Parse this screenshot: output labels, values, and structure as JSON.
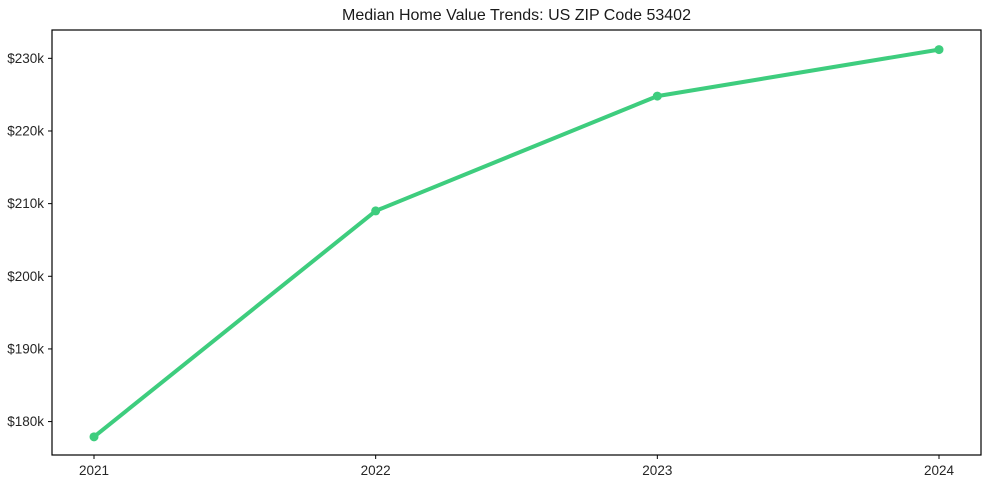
{
  "chart_data": {
    "type": "line",
    "title": "Median Home Value Trends: US ZIP Code 53402",
    "series": [
      {
        "name": "Median Home Value",
        "values": [
          177900,
          209000,
          224800,
          231200
        ]
      }
    ],
    "categories": [
      "2021",
      "2022",
      "2023",
      "2024"
    ],
    "xlabel": "",
    "ylabel": "",
    "ylim": [
      175400,
      233900
    ],
    "yticks": [
      180000,
      190000,
      200000,
      210000,
      220000,
      230000
    ],
    "ytick_labels": [
      "$180k",
      "$190k",
      "$200k",
      "$210k",
      "$220k",
      "$230k"
    ],
    "grid": false,
    "legend_position": "none",
    "line_color": "#3ecd7e",
    "marker": "circle",
    "frame_color": "#000000",
    "background_color": "#ffffff"
  }
}
